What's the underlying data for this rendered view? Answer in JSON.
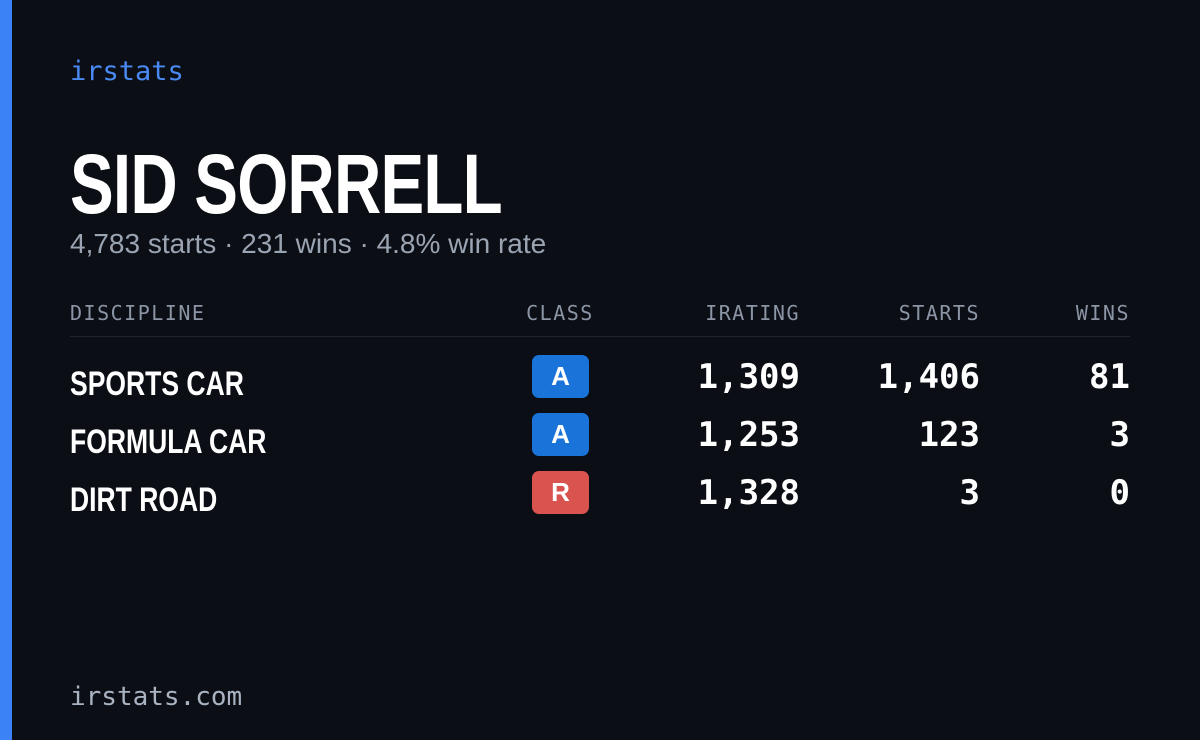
{
  "header": {
    "brand": "irstats",
    "name": "SID SORRELL",
    "summary": "4,783 starts · 231 wins · 4.8% win rate"
  },
  "table": {
    "columns": [
      "DISCIPLINE",
      "CLASS",
      "IRATING",
      "STARTS",
      "WINS"
    ],
    "rows": [
      {
        "discipline": "SPORTS CAR",
        "class": "A",
        "class_color": "#1a73d9",
        "irating": "1,309",
        "starts": "1,406",
        "wins": "81"
      },
      {
        "discipline": "FORMULA CAR",
        "class": "A",
        "class_color": "#1a73d9",
        "irating": "1,253",
        "starts": "123",
        "wins": "3"
      },
      {
        "discipline": "DIRT ROAD",
        "class": "R",
        "class_color": "#d9534f",
        "irating": "1,328",
        "starts": "3",
        "wins": "0"
      }
    ]
  },
  "footer": {
    "url": "irstats.com"
  }
}
